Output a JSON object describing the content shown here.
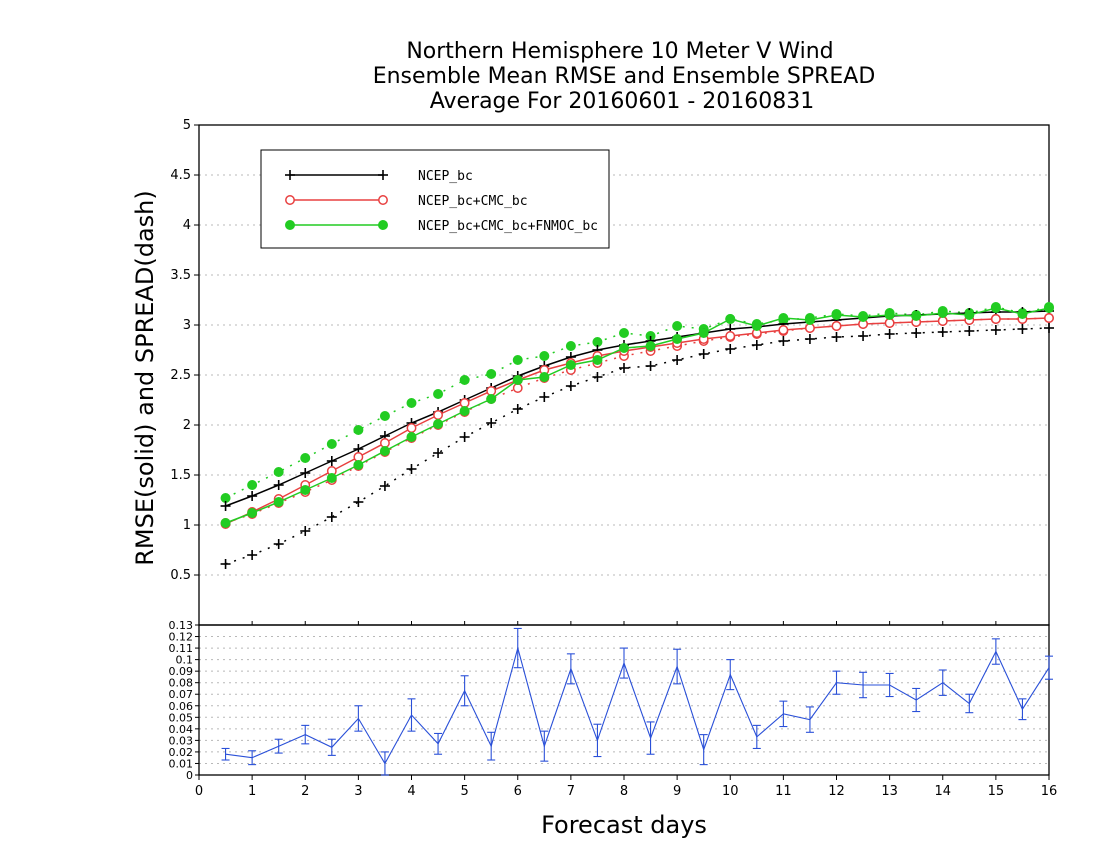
{
  "title": {
    "line1": "Northern Hemisphere 10 Meter V Wind",
    "line2": "Ensemble Mean RMSE and Ensemble SPREAD",
    "line3": "Average For 20160601 - 20160831"
  },
  "colors": {
    "ncep": "#000000",
    "ncep_cmc": "#e84040",
    "ncep_cmc_fnmoc": "#22cc22",
    "diff": "#2a50d8"
  },
  "chart_data": [
    {
      "type": "line",
      "ylabel": "RMSE(solid) and SPREAD(dash)",
      "xlabel": "Forecast days",
      "xlim": [
        0,
        16
      ],
      "ylim": [
        0,
        5
      ],
      "yticks": [
        "0.5",
        "1",
        "1.5",
        "2",
        "2.5",
        "3",
        "3.5",
        "4",
        "4.5",
        "5"
      ],
      "xticks": [
        "0",
        "1",
        "2",
        "3",
        "4",
        "5",
        "6",
        "7",
        "8",
        "9",
        "10",
        "11",
        "12",
        "13",
        "14",
        "15",
        "16"
      ],
      "grid": true,
      "legend": {
        "placement": "top-left",
        "entries": [
          "NCEP_bc",
          "NCEP_bc+CMC_bc",
          "NCEP_bc+CMC_bc+FNMOC_bc"
        ]
      },
      "x": [
        0.5,
        1,
        1.5,
        2,
        2.5,
        3,
        3.5,
        4,
        4.5,
        5,
        5.5,
        6,
        6.5,
        7,
        7.5,
        8,
        8.5,
        9,
        9.5,
        10,
        10.5,
        11,
        11.5,
        12,
        12.5,
        13,
        13.5,
        14,
        14.5,
        15,
        15.5,
        16
      ],
      "series": [
        {
          "name": "NCEP_bc",
          "style": "solid",
          "marker": "plus",
          "values": [
            1.19,
            1.29,
            1.4,
            1.52,
            1.64,
            1.76,
            1.89,
            2.02,
            2.13,
            2.25,
            2.37,
            2.49,
            2.59,
            2.68,
            2.75,
            2.8,
            2.84,
            2.88,
            2.92,
            2.96,
            2.98,
            3.01,
            3.03,
            3.05,
            3.07,
            3.09,
            3.1,
            3.11,
            3.12,
            3.13,
            3.13,
            3.14
          ]
        },
        {
          "name": "NCEP_bc+CMC_bc",
          "style": "solid",
          "marker": "open-circle",
          "values": [
            1.01,
            1.13,
            1.26,
            1.4,
            1.54,
            1.68,
            1.82,
            1.97,
            2.1,
            2.22,
            2.34,
            2.45,
            2.55,
            2.62,
            2.69,
            2.74,
            2.78,
            2.82,
            2.86,
            2.89,
            2.92,
            2.95,
            2.97,
            2.99,
            3.01,
            3.02,
            3.03,
            3.04,
            3.05,
            3.06,
            3.06,
            3.07
          ]
        },
        {
          "name": "NCEP_bc+CMC_bc+FNMOC_bc",
          "style": "solid",
          "marker": "filled-circle",
          "values": [
            1.02,
            1.12,
            1.23,
            1.35,
            1.47,
            1.6,
            1.74,
            1.88,
            2.01,
            2.14,
            2.26,
            2.45,
            2.48,
            2.6,
            2.65,
            2.77,
            2.79,
            2.86,
            2.92,
            3.06,
            2.99,
            3.07,
            3.05,
            3.1,
            3.08,
            3.1,
            3.09,
            3.12,
            3.1,
            3.17,
            3.11,
            3.17
          ]
        },
        {
          "name": "NCEP_bc spread",
          "style": "dash",
          "marker": "plus",
          "values": [
            0.61,
            0.7,
            0.81,
            0.94,
            1.08,
            1.23,
            1.39,
            1.56,
            1.72,
            1.88,
            2.02,
            2.16,
            2.28,
            2.39,
            2.48,
            2.57,
            2.59,
            2.65,
            2.71,
            2.76,
            2.8,
            2.84,
            2.86,
            2.88,
            2.89,
            2.91,
            2.92,
            2.93,
            2.94,
            2.95,
            2.96,
            2.97
          ]
        },
        {
          "name": "NCEP_bc+CMC_bc spread",
          "style": "dash",
          "marker": "open-circle",
          "values": [
            1.02,
            1.11,
            1.22,
            1.33,
            1.45,
            1.59,
            1.73,
            1.87,
            2.0,
            2.13,
            2.26,
            2.37,
            2.47,
            2.55,
            2.62,
            2.69,
            2.74,
            2.79,
            2.84,
            2.88,
            2.91,
            2.94,
            2.97,
            2.99,
            3.01,
            3.02,
            3.03,
            3.04,
            3.05,
            3.06,
            3.06,
            3.07
          ]
        },
        {
          "name": "NCEP_bc+CMC_bc+FNMOC_bc spread",
          "style": "dash",
          "marker": "filled-circle",
          "values": [
            1.27,
            1.4,
            1.53,
            1.67,
            1.81,
            1.95,
            2.09,
            2.22,
            2.31,
            2.45,
            2.51,
            2.65,
            2.69,
            2.79,
            2.83,
            2.92,
            2.89,
            2.99,
            2.96,
            3.06,
            3.01,
            3.05,
            3.07,
            3.11,
            3.09,
            3.12,
            3.1,
            3.14,
            3.12,
            3.18,
            3.12,
            3.18
          ]
        }
      ]
    },
    {
      "type": "line",
      "xlabel": "Forecast days",
      "xlim": [
        0,
        16
      ],
      "ylim": [
        0,
        0.13
      ],
      "yticks": [
        "0",
        "0.01",
        "0.02",
        "0.03",
        "0.04",
        "0.05",
        "0.06",
        "0.07",
        "0.08",
        "0.09",
        "0.1",
        "0.11",
        "0.12",
        "0.13"
      ],
      "grid": true,
      "error_bars": true,
      "x": [
        0.5,
        1,
        1.5,
        2,
        2.5,
        3,
        3.5,
        4,
        4.5,
        5,
        5.5,
        6,
        6.5,
        7,
        7.5,
        8,
        8.5,
        9,
        9.5,
        10,
        10.5,
        11,
        11.5,
        12,
        12.5,
        13,
        13.5,
        14,
        14.5,
        15,
        15.5,
        16
      ],
      "series": [
        {
          "values": [
            0.018,
            0.015,
            0.025,
            0.035,
            0.024,
            0.049,
            0.01,
            0.052,
            0.027,
            0.073,
            0.025,
            0.11,
            0.025,
            0.092,
            0.03,
            0.097,
            0.032,
            0.094,
            0.022,
            0.087,
            0.033,
            0.053,
            0.048,
            0.08,
            0.078,
            0.078,
            0.065,
            0.08,
            0.062,
            0.107,
            0.057,
            0.093
          ],
          "error": [
            0.005,
            0.006,
            0.006,
            0.008,
            0.007,
            0.011,
            0.01,
            0.014,
            0.009,
            0.013,
            0.012,
            0.017,
            0.013,
            0.013,
            0.014,
            0.013,
            0.014,
            0.015,
            0.013,
            0.013,
            0.01,
            0.011,
            0.011,
            0.01,
            0.011,
            0.01,
            0.01,
            0.011,
            0.008,
            0.011,
            0.009,
            0.01
          ]
        }
      ]
    }
  ]
}
